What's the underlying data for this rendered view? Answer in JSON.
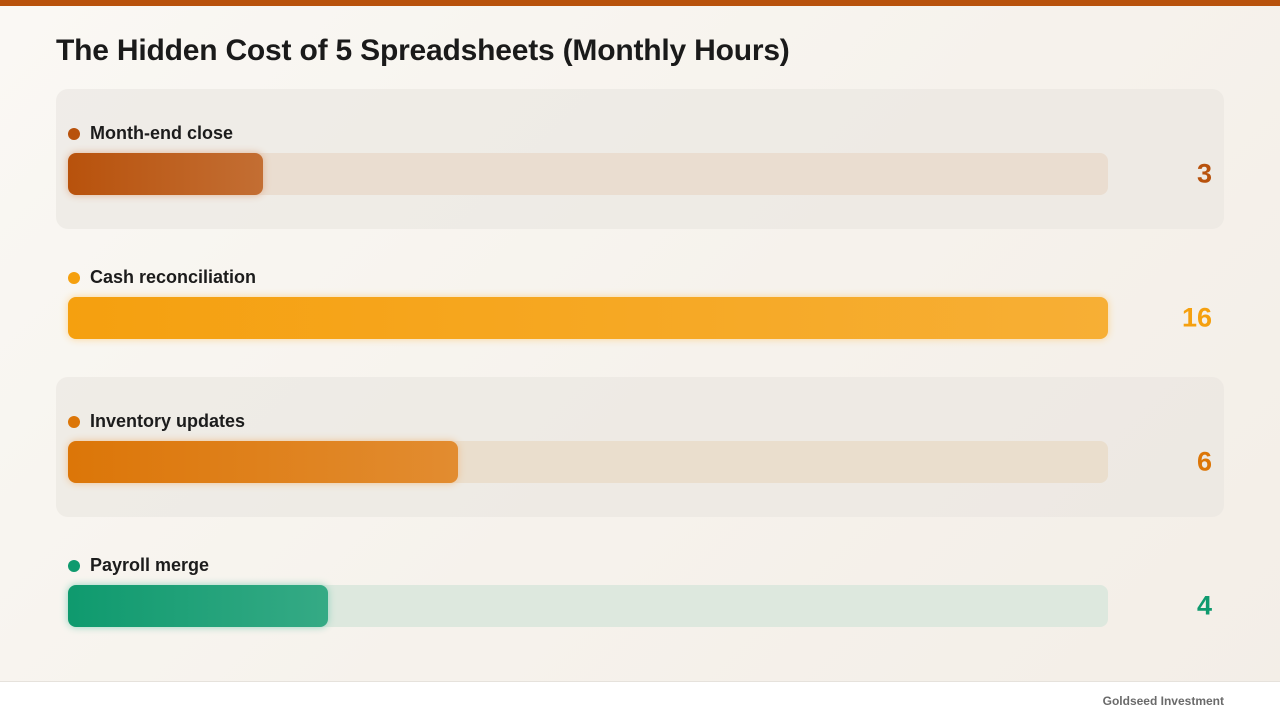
{
  "chart_data": {
    "type": "bar",
    "orientation": "horizontal",
    "title": "The Hidden Cost of 5 Spreadsheets (Monthly Hours)",
    "categories": [
      "Month-end close",
      "Cash reconciliation",
      "Inventory updates",
      "Payroll merge"
    ],
    "values": [
      3,
      16,
      6,
      4
    ],
    "xlim": [
      0,
      16
    ],
    "colors": [
      "#b8520c",
      "#f5a00f",
      "#dc7608",
      "#0f9a6e"
    ],
    "track_colors": [
      "#eaddd0",
      "#eaddd0",
      "#eadecd",
      "#dde8de"
    ],
    "legend": "none",
    "grid": false
  },
  "footer": {
    "brand": "Goldseed Investment"
  }
}
